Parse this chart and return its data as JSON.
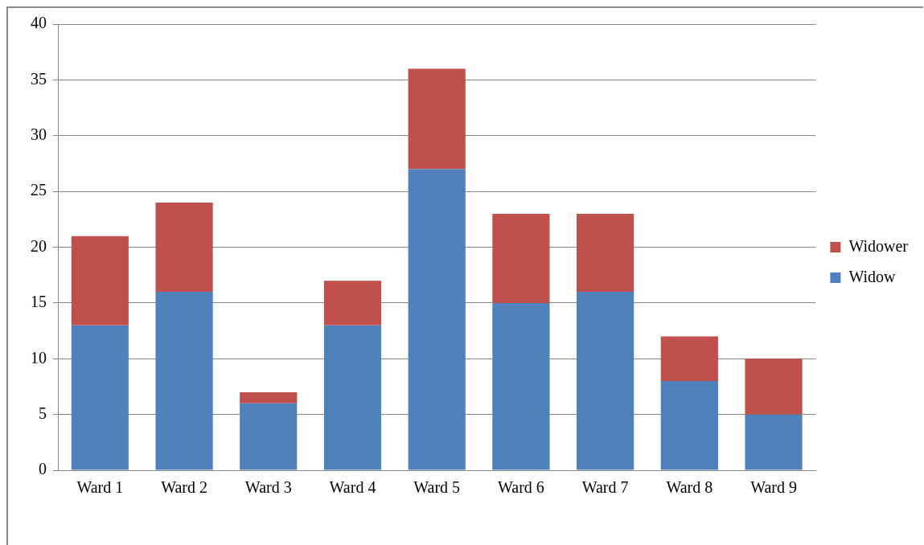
{
  "chart_data": {
    "type": "bar",
    "stacked": true,
    "categories": [
      "Ward 1",
      "Ward 2",
      "Ward 3",
      "Ward 4",
      "Ward 5",
      "Ward 6",
      "Ward 7",
      "Ward 8",
      "Ward 9"
    ],
    "series": [
      {
        "name": "Widow",
        "color": "#4f81bd",
        "values": [
          13,
          16,
          6,
          13,
          27,
          15,
          16,
          8,
          5
        ]
      },
      {
        "name": "Widower",
        "color": "#c0504d",
        "values": [
          8,
          8,
          1,
          4,
          9,
          8,
          7,
          4,
          5
        ]
      }
    ],
    "ylim": [
      0,
      40
    ],
    "yticks": [
      0,
      5,
      10,
      15,
      20,
      25,
      30,
      35,
      40
    ],
    "grid": "y",
    "legend": "right"
  }
}
